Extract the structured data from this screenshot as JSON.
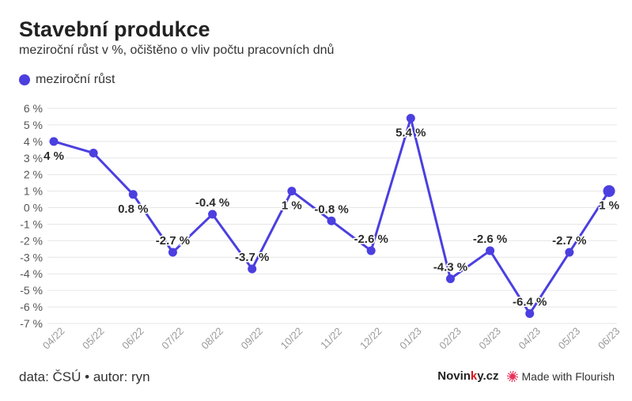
{
  "header": {
    "title": "Stavební produkce",
    "subtitle": "meziroční růst v %, očištěno o vliv počtu pracovních dnů"
  },
  "legend": {
    "label": "meziroční růst",
    "color": "#4b3fe0"
  },
  "footer": {
    "source": "data: ČSÚ • autor: ryn",
    "brand_prefix": "Novin",
    "brand_accent": "k",
    "brand_suffix": "y.cz",
    "flourish_label": "Made with Flourish"
  },
  "chart_data": {
    "type": "line",
    "categories": [
      "04/22",
      "05/22",
      "06/22",
      "07/22",
      "08/22",
      "09/22",
      "10/22",
      "11/22",
      "12/22",
      "01/23",
      "02/23",
      "03/23",
      "04/23",
      "05/23",
      "06/23"
    ],
    "series": [
      {
        "name": "meziroční růst",
        "values": [
          4,
          3.3,
          0.8,
          -2.7,
          -0.4,
          -3.7,
          1,
          -0.8,
          -2.6,
          5.4,
          -4.3,
          -2.6,
          -6.4,
          -2.7,
          1
        ],
        "color": "#4b3fe0"
      }
    ],
    "data_labels": [
      {
        "index": 0,
        "text": "4 %",
        "pos": "below"
      },
      {
        "index": 2,
        "text": "0.8 %",
        "pos": "below"
      },
      {
        "index": 3,
        "text": "-2.7 %",
        "pos": "above"
      },
      {
        "index": 4,
        "text": "-0.4 %",
        "pos": "above"
      },
      {
        "index": 5,
        "text": "-3.7 %",
        "pos": "above"
      },
      {
        "index": 6,
        "text": "1 %",
        "pos": "below"
      },
      {
        "index": 7,
        "text": "-0.8 %",
        "pos": "above"
      },
      {
        "index": 8,
        "text": "-2.6 %",
        "pos": "above"
      },
      {
        "index": 9,
        "text": "5.4 %",
        "pos": "below"
      },
      {
        "index": 10,
        "text": "-4.3 %",
        "pos": "above"
      },
      {
        "index": 11,
        "text": "-2.6 %",
        "pos": "above"
      },
      {
        "index": 12,
        "text": "-6.4 %",
        "pos": "above"
      },
      {
        "index": 13,
        "text": "-2.7 %",
        "pos": "above"
      },
      {
        "index": 14,
        "text": "1 %",
        "pos": "below"
      }
    ],
    "y_ticks": [
      6,
      5,
      4,
      3,
      2,
      1,
      0,
      -1,
      -2,
      -3,
      -4,
      -5,
      -6,
      -7
    ],
    "y_tick_suffix": " %",
    "ylim": [
      -7,
      6
    ],
    "grid": true,
    "highlight_last_point": true
  }
}
